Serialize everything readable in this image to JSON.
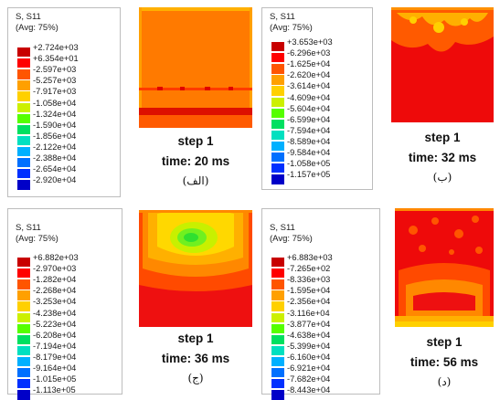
{
  "palette": [
    "#c80000",
    "#ff0000",
    "#ff5500",
    "#ffa000",
    "#ffd000",
    "#ccf000",
    "#55ff00",
    "#00e060",
    "#00e0c0",
    "#00b0ff",
    "#0070ff",
    "#0030ff",
    "#0000c8"
  ],
  "panels": [
    {
      "title": "S, S11",
      "subtitle": "(Avg: 75%)",
      "values": [
        "+2.724e+03",
        "+6.354e+01",
        "-2.597e+03",
        "-5.257e+03",
        "-7.917e+03",
        "-1.058e+04",
        "-1.324e+04",
        "-1.590e+04",
        "-1.856e+04",
        "-2.122e+04",
        "-2.388e+04",
        "-2.654e+04",
        "-2.920e+04"
      ],
      "step": "step 1",
      "time": "time: 20 ms",
      "tag": "(الف)"
    },
    {
      "title": "S, S11",
      "subtitle": "(Avg: 75%)",
      "values": [
        "+3.653e+03",
        "-6.296e+03",
        "-1.625e+04",
        "-2.620e+04",
        "-3.614e+04",
        "-4.609e+04",
        "-5.604e+04",
        "-6.599e+04",
        "-7.594e+04",
        "-8.589e+04",
        "-9.584e+04",
        "-1.058e+05",
        "-1.157e+05"
      ],
      "step": "step 1",
      "time": "time: 32 ms",
      "tag": "(ب)"
    },
    {
      "title": "S, S11",
      "subtitle": "(Avg: 75%)",
      "values": [
        "+6.882e+03",
        "-2.970e+03",
        "-1.282e+04",
        "-2.268e+04",
        "-3.253e+04",
        "-4.238e+04",
        "-5.223e+04",
        "-6.208e+04",
        "-7.194e+04",
        "-8.179e+04",
        "-9.164e+04",
        "-1.015e+05",
        "-1.113e+05"
      ],
      "step": "step 1",
      "time": "time: 36 ms",
      "tag": "(ج)"
    },
    {
      "title": "S, S11",
      "subtitle": "(Avg: 75%)",
      "values": [
        "+6.883e+03",
        "-7.265e+02",
        "-8.336e+03",
        "-1.595e+04",
        "-2.356e+04",
        "-3.116e+04",
        "-3.877e+04",
        "-4.638e+04",
        "-5.399e+04",
        "-6.160e+04",
        "-6.921e+04",
        "-7.682e+04",
        "-8.443e+04"
      ],
      "step": "step 1",
      "time": "time: 56 ms",
      "tag": "(د)"
    }
  ]
}
